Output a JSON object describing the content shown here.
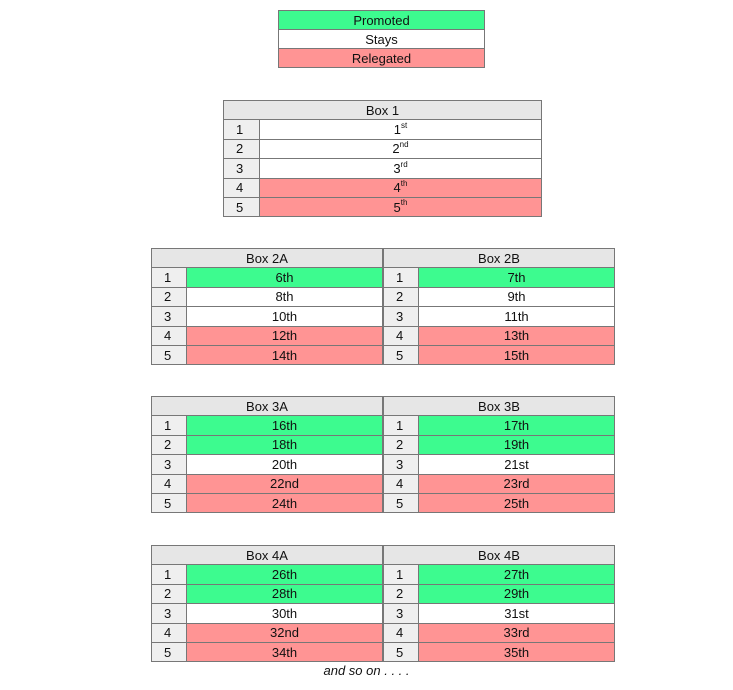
{
  "legend": [
    {
      "label": "Promoted",
      "status": "promoted"
    },
    {
      "label": "Stays",
      "status": "stays"
    },
    {
      "label": "Relegated",
      "status": "relegated"
    }
  ],
  "colors": {
    "promoted": "#3dfb8f",
    "stays": "#ffffff",
    "relegated": "#ff9494",
    "header": "#e6e6e6"
  },
  "box1": {
    "title": "Box 1",
    "rows": [
      {
        "num": "1",
        "base": "1",
        "sup": "st",
        "status": "stays"
      },
      {
        "num": "2",
        "base": "2",
        "sup": "nd",
        "status": "stays"
      },
      {
        "num": "3",
        "base": "3",
        "sup": "rd",
        "status": "stays"
      },
      {
        "num": "4",
        "base": "4",
        "sup": "th",
        "status": "relegated"
      },
      {
        "num": "5",
        "base": "5",
        "sup": "th",
        "status": "relegated"
      }
    ]
  },
  "groups": [
    {
      "a": {
        "title": "Box 2A",
        "values": [
          "6th",
          "8th",
          "10th",
          "12th",
          "14th"
        ]
      },
      "b": {
        "title": "Box 2B",
        "values": [
          "7th",
          "9th",
          "11th",
          "13th",
          "15th"
        ]
      },
      "statuses": [
        "promoted",
        "stays",
        "stays",
        "relegated",
        "relegated"
      ]
    },
    {
      "a": {
        "title": "Box 3A",
        "values": [
          "16th",
          "18th",
          "20th",
          "22nd",
          "24th"
        ]
      },
      "b": {
        "title": "Box 3B",
        "values": [
          "17th",
          "19th",
          "21st",
          "23rd",
          "25th"
        ]
      },
      "statuses": [
        "promoted",
        "promoted",
        "stays",
        "relegated",
        "relegated"
      ]
    },
    {
      "a": {
        "title": "Box 4A",
        "values": [
          "26th",
          "28th",
          "30th",
          "32nd",
          "34th"
        ]
      },
      "b": {
        "title": "Box 4B",
        "values": [
          "27th",
          "29th",
          "31st",
          "33rd",
          "35th"
        ]
      },
      "statuses": [
        "promoted",
        "promoted",
        "stays",
        "relegated",
        "relegated"
      ]
    }
  ],
  "row_numbers": [
    "1",
    "2",
    "3",
    "4",
    "5"
  ],
  "footer": "and so on . . . ."
}
